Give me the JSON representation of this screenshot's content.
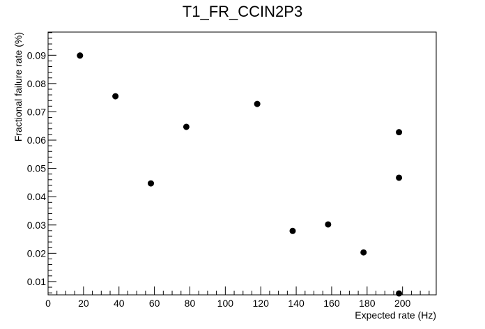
{
  "chart_data": {
    "type": "scatter",
    "title": "T1_FR_CCIN2P3",
    "xlabel": "Expected rate (Hz)",
    "ylabel": "Fractional failure rate (%)",
    "xlim": [
      0,
      219
    ],
    "ylim": [
      0.0053,
      0.0982
    ],
    "grid": false,
    "legend": "none",
    "x_ticks": [
      0,
      20,
      40,
      60,
      80,
      100,
      120,
      140,
      160,
      180,
      200
    ],
    "y_ticks": [
      0.01,
      0.02,
      0.03,
      0.04,
      0.05,
      0.06,
      0.07,
      0.08,
      0.09
    ],
    "x_tick_labels": [
      "0",
      "20",
      "40",
      "60",
      "80",
      "100",
      "120",
      "140",
      "160",
      "180",
      "200"
    ],
    "y_tick_labels": [
      "0.01",
      "0.02",
      "0.03",
      "0.04",
      "0.05",
      "0.06",
      "0.07",
      "0.08",
      "0.09"
    ],
    "marker_color": "#000000",
    "points": [
      {
        "x": 18,
        "y": 0.0899
      },
      {
        "x": 38,
        "y": 0.0755
      },
      {
        "x": 58,
        "y": 0.0447
      },
      {
        "x": 78,
        "y": 0.0647
      },
      {
        "x": 118,
        "y": 0.0728
      },
      {
        "x": 138,
        "y": 0.0279
      },
      {
        "x": 158,
        "y": 0.0302
      },
      {
        "x": 178,
        "y": 0.0203
      },
      {
        "x": 198,
        "y": 0.0628
      },
      {
        "x": 198,
        "y": 0.0467
      },
      {
        "x": 198,
        "y": 0.0058
      }
    ]
  }
}
